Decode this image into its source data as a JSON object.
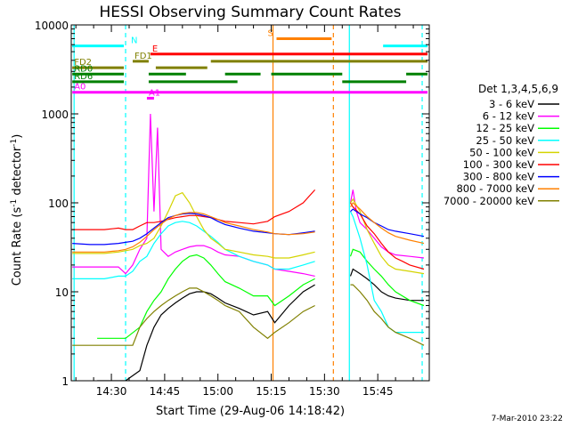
{
  "chart_data": {
    "type": "line",
    "title": "HESSI Observing Summary Count Rates",
    "xlabel": "Start Time (29-Aug-06 14:18:42)",
    "ylabel_main": "Count Rate (s",
    "ylabel_sup": "-1",
    "ylabel_mid": " detector",
    "ylabel_end": ")",
    "yscale": "log",
    "ylim": [
      1,
      10000
    ],
    "xlim_min": [
      18.7,
      62.1
    ],
    "x_unit": "minutes after 14:00 UT",
    "x_ticks": [
      {
        "value": 30,
        "label": "14:30"
      },
      {
        "value": 45,
        "label": "14:45"
      },
      {
        "value": 60,
        "label": "15:00"
      },
      {
        "value": 75,
        "label": "15:15"
      },
      {
        "value": 90,
        "label": "15:30"
      },
      {
        "value": 105,
        "label": "15:45"
      }
    ],
    "y_ticks": [
      {
        "value": 1,
        "label": "1"
      },
      {
        "value": 10,
        "label": "10"
      },
      {
        "value": 100,
        "label": "100"
      },
      {
        "value": 1000,
        "label": "1000"
      },
      {
        "value": 10000,
        "label": "10000"
      }
    ],
    "timestamp": "7-Mar-2010 23:22",
    "legend": {
      "placement": "right",
      "title": "Det 1,3,4,5,6,9",
      "entries": [
        {
          "label": "3 - 6 keV",
          "color": "#000000"
        },
        {
          "label": "6 - 12 keV",
          "color": "#ff00ff"
        },
        {
          "label": "12 - 25 keV",
          "color": "#00ff00"
        },
        {
          "label": "25 - 50 keV",
          "color": "#00ffff"
        },
        {
          "label": "50 - 100 keV",
          "color": "#d4d400"
        },
        {
          "label": "100 - 300 keV",
          "color": "#ff0000"
        },
        {
          "label": "300 - 800 keV",
          "color": "#0000ff"
        },
        {
          "label": "800 - 7000 keV",
          "color": "#ff8000"
        },
        {
          "label": "7000 - 20000 keV",
          "color": "#808000"
        }
      ]
    },
    "flag_bars": [
      {
        "label": "N",
        "color": "#00ffff",
        "y_level": 5800,
        "segments": [
          [
            19,
            33.5
          ],
          [
            106.5,
            119
          ]
        ]
      },
      {
        "label": "S",
        "color": "#ff8000",
        "y_level": 7000,
        "segments": [
          [
            76.5,
            92
          ]
        ]
      },
      {
        "label": "E",
        "color": "#ff0000",
        "y_level": 4700,
        "segments": [
          [
            41,
            119
          ]
        ]
      },
      {
        "label": "FD1",
        "color": "#808000",
        "y_level": 3900,
        "segments": [
          [
            36,
            40.5
          ],
          [
            58,
            119
          ]
        ]
      },
      {
        "label": "FD2",
        "color": "#808000",
        "y_level": 3300,
        "segments": [
          [
            19,
            33.5
          ],
          [
            42.5,
            57
          ]
        ]
      },
      {
        "label": "RD0",
        "color": "#008000",
        "y_level": 2800,
        "segments": [
          [
            19,
            33.5
          ],
          [
            40.5,
            51
          ],
          [
            62,
            72
          ],
          [
            75,
            95
          ],
          [
            113,
            119
          ]
        ]
      },
      {
        "label": "RD6",
        "color": "#008000",
        "y_level": 2300,
        "segments": [
          [
            19,
            33.5
          ],
          [
            40.5,
            65.5
          ],
          [
            95,
            113
          ]
        ]
      },
      {
        "label": "A0",
        "color": "#ff00ff",
        "y_level": 1750,
        "segments": [
          [
            19,
            119
          ]
        ]
      },
      {
        "label": "A1",
        "color": "#ff00ff",
        "y_level": 1500,
        "segments": [
          [
            40,
            42
          ]
        ]
      }
    ],
    "vertical_markers": [
      {
        "x": 19.5,
        "color": "#00ffff",
        "style": "solid"
      },
      {
        "x": 34.0,
        "color": "#00ffff",
        "style": "dashed"
      },
      {
        "x": 75.5,
        "color": "#ff8000",
        "style": "solid"
      },
      {
        "x": 92.5,
        "color": "#ff8000",
        "style": "dashed"
      },
      {
        "x": 97.0,
        "color": "#00ffff",
        "style": "solid"
      },
      {
        "x": 117.5,
        "color": "#00ffff",
        "style": "dashed"
      }
    ],
    "gaps": [
      [
        87.5,
        96.0
      ]
    ],
    "series": [
      {
        "name": "3 - 6 keV",
        "color": "#000000",
        "x": [
          26,
          30,
          34,
          38,
          40,
          42,
          44,
          46,
          48,
          50,
          52,
          54,
          56,
          58,
          60,
          62,
          66,
          70,
          74,
          76,
          80,
          84,
          87.3,
          97.3,
          98,
          100,
          102,
          104,
          106,
          108,
          110,
          114,
          118
        ],
        "y": [
          1,
          1,
          1,
          1.3,
          2.5,
          4,
          5.5,
          6.5,
          7.5,
          8.5,
          9.5,
          10,
          10,
          9.5,
          8.5,
          7.5,
          6.5,
          5.5,
          6,
          4.5,
          7,
          10,
          12,
          15,
          18,
          16,
          14,
          12,
          10,
          9,
          8.5,
          8,
          8
        ]
      },
      {
        "name": "6 - 12 keV",
        "color": "#ff00ff",
        "x": [
          19,
          24,
          28,
          32,
          34,
          36,
          38,
          40,
          41,
          42,
          43,
          44,
          46,
          48,
          50,
          52,
          54,
          56,
          58,
          60,
          62,
          66,
          70,
          74,
          76,
          80,
          84,
          87.3,
          97.3,
          98,
          99,
          100,
          102,
          104,
          106,
          108,
          110,
          114,
          118
        ],
        "y": [
          19,
          19,
          19,
          19,
          16,
          20,
          30,
          40,
          1000,
          80,
          700,
          30,
          25,
          28,
          30,
          32,
          33,
          33,
          31,
          28,
          26,
          25,
          22,
          20,
          18,
          17,
          16,
          15,
          100,
          140,
          80,
          60,
          50,
          40,
          32,
          28,
          26,
          25,
          24
        ]
      },
      {
        "name": "12 - 25 keV",
        "color": "#00ff00",
        "x": [
          26,
          30,
          34,
          38,
          40,
          42,
          44,
          46,
          48,
          50,
          52,
          54,
          56,
          58,
          60,
          62,
          66,
          70,
          74,
          76,
          80,
          84,
          87.3,
          97.3,
          98,
          100,
          102,
          104,
          106,
          108,
          110,
          114,
          118
        ],
        "y": [
          3,
          3,
          3,
          4,
          6,
          8,
          10,
          14,
          18,
          22,
          25,
          26,
          24,
          20,
          16,
          13,
          11,
          9,
          9,
          7,
          9,
          12,
          14,
          25,
          30,
          28,
          22,
          18,
          15,
          12,
          10,
          8,
          7
        ]
      },
      {
        "name": "25 - 50 keV",
        "color": "#00ffff",
        "x": [
          19,
          24,
          28,
          32,
          34,
          36,
          38,
          40,
          42,
          44,
          46,
          48,
          50,
          52,
          54,
          56,
          58,
          60,
          62,
          66,
          70,
          74,
          76,
          80,
          84,
          87.3,
          97.3,
          98,
          100,
          102,
          104,
          106,
          108,
          110,
          112,
          114,
          118
        ],
        "y": [
          14,
          14,
          14,
          15,
          15,
          17,
          22,
          25,
          35,
          45,
          55,
          60,
          62,
          60,
          55,
          48,
          42,
          36,
          30,
          25,
          22,
          20,
          18,
          18,
          20,
          22,
          80,
          70,
          40,
          20,
          8,
          6,
          4,
          3.5,
          3.5,
          3.5,
          3.5
        ]
      },
      {
        "name": "50 - 100 keV",
        "color": "#d4d400",
        "x": [
          19,
          24,
          28,
          32,
          34,
          36,
          38,
          40,
          42,
          44,
          46,
          48,
          50,
          52,
          54,
          56,
          58,
          60,
          62,
          66,
          70,
          74,
          76,
          80,
          84,
          87.3,
          97.3,
          98,
          100,
          102,
          104,
          106,
          108,
          110,
          114,
          118
        ],
        "y": [
          27,
          27,
          27,
          28,
          29,
          30,
          33,
          35,
          40,
          55,
          80,
          120,
          130,
          100,
          70,
          50,
          40,
          35,
          30,
          28,
          26,
          25,
          24,
          24,
          26,
          28,
          100,
          110,
          80,
          50,
          35,
          25,
          20,
          18,
          17,
          16
        ]
      },
      {
        "name": "100 - 300 keV",
        "color": "#ff0000",
        "x": [
          19,
          24,
          28,
          32,
          34,
          36,
          38,
          40,
          42,
          44,
          46,
          48,
          50,
          52,
          54,
          56,
          58,
          60,
          62,
          66,
          70,
          74,
          76,
          80,
          84,
          87.3,
          97.3,
          98,
          100,
          102,
          104,
          106,
          108,
          110,
          112,
          114,
          118
        ],
        "y": [
          50,
          50,
          50,
          52,
          50,
          50,
          55,
          60,
          60,
          62,
          65,
          68,
          70,
          72,
          72,
          70,
          68,
          65,
          62,
          60,
          58,
          62,
          70,
          80,
          100,
          140,
          100,
          90,
          75,
          55,
          45,
          35,
          28,
          24,
          22,
          20,
          18
        ]
      },
      {
        "name": "300 - 800 keV",
        "color": "#0000ff",
        "x": [
          19,
          24,
          28,
          32,
          34,
          36,
          38,
          40,
          42,
          44,
          46,
          48,
          50,
          52,
          54,
          56,
          58,
          60,
          62,
          66,
          70,
          74,
          76,
          80,
          84,
          87.3,
          97.3,
          98,
          100,
          102,
          104,
          106,
          108,
          110,
          114,
          118
        ],
        "y": [
          35,
          34,
          34,
          35,
          36,
          37,
          40,
          45,
          52,
          60,
          68,
          72,
          75,
          76,
          75,
          72,
          68,
          62,
          57,
          52,
          48,
          46,
          45,
          44,
          46,
          48,
          80,
          85,
          75,
          68,
          60,
          55,
          50,
          48,
          45,
          42
        ]
      },
      {
        "name": "800 - 7000 keV",
        "color": "#ff8000",
        "x": [
          19,
          24,
          28,
          32,
          34,
          36,
          38,
          40,
          42,
          44,
          46,
          48,
          50,
          52,
          54,
          56,
          58,
          60,
          62,
          66,
          70,
          74,
          76,
          80,
          84,
          87.3,
          97.3,
          98,
          100,
          102,
          104,
          106,
          108,
          110,
          114,
          118
        ],
        "y": [
          28,
          28,
          28,
          29,
          30,
          32,
          36,
          42,
          50,
          58,
          66,
          72,
          76,
          78,
          78,
          75,
          70,
          65,
          60,
          55,
          50,
          47,
          45,
          44,
          45,
          47,
          90,
          100,
          85,
          70,
          60,
          52,
          46,
          42,
          38,
          35
        ]
      },
      {
        "name": "7000 - 20000 keV",
        "color": "#808000",
        "x": [
          19,
          24,
          28,
          32,
          34,
          36,
          38,
          40,
          42,
          44,
          46,
          48,
          50,
          52,
          54,
          56,
          58,
          60,
          62,
          66,
          70,
          74,
          76,
          80,
          84,
          87.3,
          97.3,
          98,
          100,
          102,
          104,
          106,
          108,
          110,
          114,
          118
        ],
        "y": [
          2.5,
          2.5,
          2.5,
          2.5,
          2.5,
          2.5,
          4,
          5,
          6,
          7,
          8,
          9,
          10,
          11,
          11,
          10,
          9,
          8,
          7,
          6,
          4,
          3,
          3.5,
          4.5,
          6,
          7,
          12,
          12,
          10,
          8,
          6,
          5,
          4,
          3.5,
          3,
          2.5
        ]
      }
    ]
  }
}
